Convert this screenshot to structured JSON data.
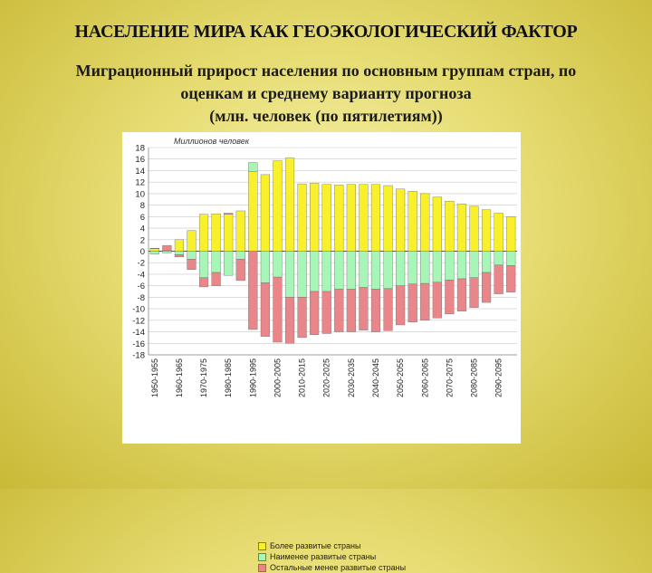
{
  "slide": {
    "title": "НАСЕЛЕНИЕ МИРА КАК ГЕОЭКОЛОГИЧЕСКИЙ ФАКТОР",
    "subtitle_lines": [
      "Миграционный прирост населения по основным группам стран, по",
      "оценкам и среднему варианту прогноза",
      "(млн. человек (по пятилетиям))"
    ]
  },
  "colors": {
    "developed": "#f7f02b",
    "least": "#a8f5b8",
    "other": "#e8868a",
    "grid": "#c8c8c8"
  },
  "chart_data": {
    "type": "bar",
    "ylabel": "Миллионов человек",
    "ylim": [
      -18,
      18
    ],
    "yticks": [
      18,
      16,
      14,
      12,
      10,
      8,
      6,
      4,
      2,
      0,
      -2,
      -4,
      -6,
      -8,
      -10,
      -12,
      -14,
      -16,
      -18
    ],
    "categories": [
      "1950-1955",
      "1955-1960",
      "1960-1965",
      "1965-1970",
      "1970-1975",
      "1975-1980",
      "1980-1985",
      "1985-1990",
      "1990-1995",
      "1995-2000",
      "2000-2005",
      "2005-2010",
      "2010-2015",
      "2015-2020",
      "2020-2025",
      "2025-2030",
      "2030-2035",
      "2035-2040",
      "2040-2045",
      "2045-2050",
      "2050-2055",
      "2055-2060",
      "2060-2065",
      "2065-2070",
      "2070-2075",
      "2075-2080",
      "2080-2085",
      "2085-2090",
      "2090-2095",
      "2095-2100"
    ],
    "xtick_labels": [
      "1950-1955",
      "1960-1965",
      "1970-1975",
      "1980-1985",
      "1990-1995",
      "2000-2005",
      "2010-2015",
      "2020-2025",
      "2030-2035",
      "2040-2045",
      "2050-2055",
      "2060-2065",
      "2070-2075",
      "2080-2085",
      "2090-2095"
    ],
    "series": [
      {
        "name": "Более развитые страны",
        "key": "developed",
        "values": [
          0.5,
          0.1,
          2.0,
          3.6,
          6.4,
          6.5,
          6.4,
          7.0,
          13.8,
          13.3,
          15.7,
          16.2,
          11.7,
          11.8,
          11.6,
          11.5,
          11.6,
          11.6,
          11.6,
          11.4,
          10.8,
          10.4,
          10.0,
          9.4,
          8.7,
          8.2,
          7.8,
          7.2,
          6.6,
          6.0
        ]
      },
      {
        "name": "Наименее развитые страны",
        "key": "least",
        "values": [
          -0.5,
          -0.3,
          -0.6,
          -1.4,
          -4.6,
          -3.7,
          -4.2,
          -1.4,
          1.6,
          -5.5,
          -4.5,
          -8.0,
          -8.0,
          -7.0,
          -7.0,
          -6.6,
          -6.6,
          -6.3,
          -6.6,
          -6.5,
          -6.0,
          -5.7,
          -5.6,
          -5.4,
          -5.0,
          -4.8,
          -4.6,
          -3.7,
          -2.4,
          -2.5
        ]
      },
      {
        "name": "Остальные менее развитые страны",
        "key": "other",
        "values": [
          0.0,
          0.9,
          -0.4,
          -1.8,
          -1.6,
          -2.3,
          0.2,
          -3.7,
          -13.6,
          -9.3,
          -11.3,
          -8.0,
          -7.0,
          -7.5,
          -7.3,
          -7.4,
          -7.4,
          -7.4,
          -7.4,
          -7.3,
          -6.8,
          -6.6,
          -6.4,
          -6.2,
          -5.9,
          -5.6,
          -5.2,
          -5.2,
          -5.0,
          -4.6
        ]
      }
    ],
    "legend_position": "bottom-left",
    "grid": true
  }
}
